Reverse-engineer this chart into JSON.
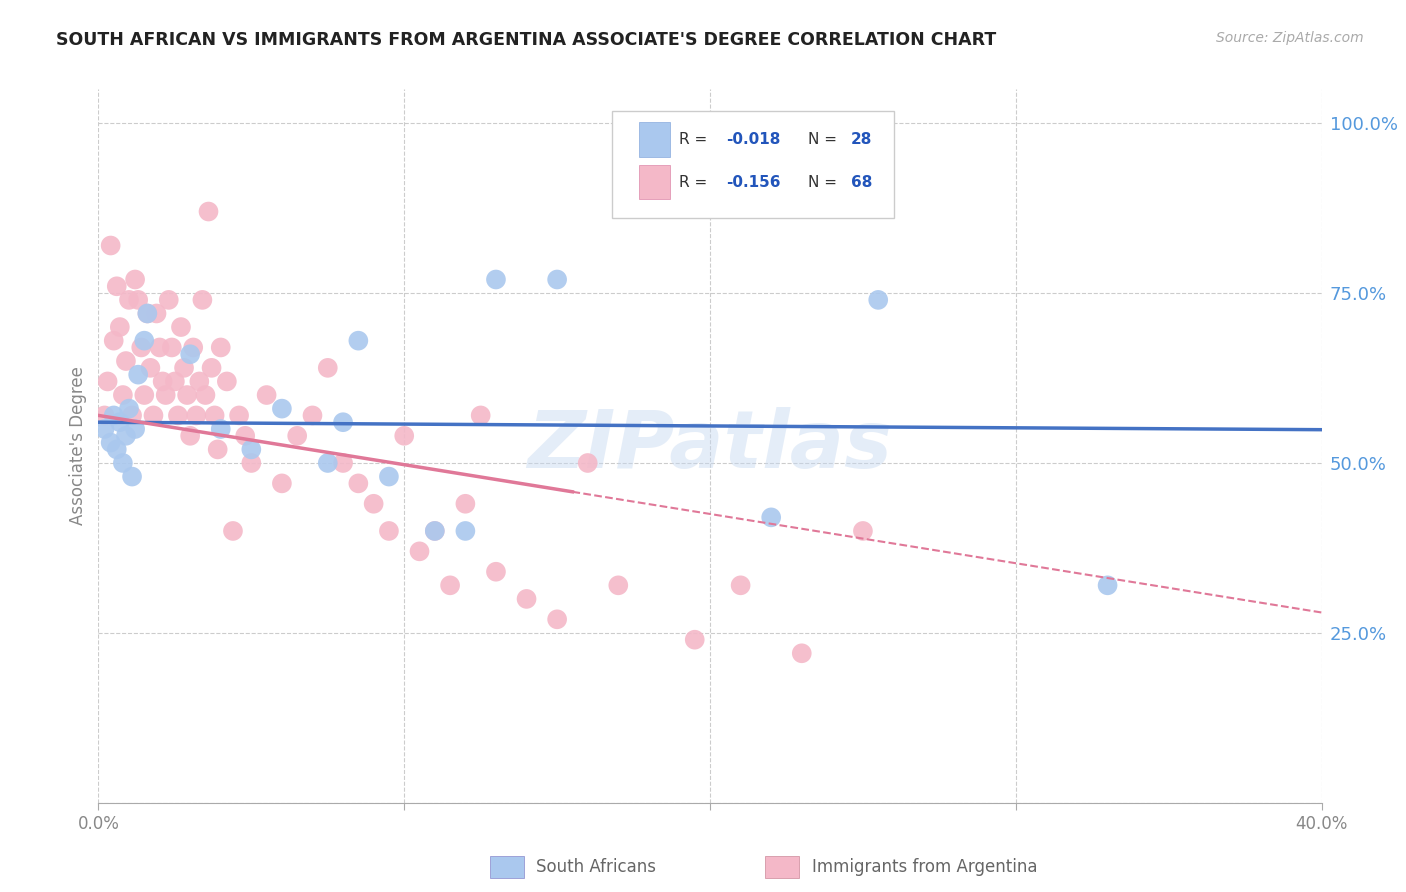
{
  "title": "SOUTH AFRICAN VS IMMIGRANTS FROM ARGENTINA ASSOCIATE'S DEGREE CORRELATION CHART",
  "source": "Source: ZipAtlas.com",
  "ylabel": "Associate's Degree",
  "yticks": [
    0.0,
    0.25,
    0.5,
    0.75,
    1.0
  ],
  "ytick_labels": [
    "",
    "25.0%",
    "50.0%",
    "75.0%",
    "100.0%"
  ],
  "xtick_labels": [
    "0.0%",
    "",
    "",
    "",
    "40.0%"
  ],
  "legend_r1": "R = -0.018",
  "legend_n1": "N = 28",
  "legend_r2": "R = -0.156",
  "legend_n2": "N = 68",
  "color_blue": "#aac8ee",
  "color_pink": "#f4b8c8",
  "color_blue_line": "#4472c4",
  "color_pink_line": "#e07898",
  "color_grid": "#cccccc",
  "color_title": "#222222",
  "color_source": "#aaaaaa",
  "color_rtext": "#2255bb",
  "xlim": [
    0.0,
    0.4
  ],
  "ylim": [
    0.0,
    1.05
  ],
  "sa_x": [
    0.002,
    0.004,
    0.005,
    0.006,
    0.007,
    0.008,
    0.009,
    0.01,
    0.011,
    0.012,
    0.013,
    0.015,
    0.016,
    0.03,
    0.04,
    0.05,
    0.06,
    0.075,
    0.08,
    0.085,
    0.095,
    0.11,
    0.12,
    0.13,
    0.15,
    0.22,
    0.255,
    0.33
  ],
  "sa_y": [
    0.55,
    0.53,
    0.57,
    0.52,
    0.56,
    0.5,
    0.54,
    0.58,
    0.48,
    0.55,
    0.63,
    0.68,
    0.72,
    0.66,
    0.55,
    0.52,
    0.58,
    0.5,
    0.56,
    0.68,
    0.48,
    0.4,
    0.4,
    0.77,
    0.77,
    0.42,
    0.74,
    0.32
  ],
  "arg_x": [
    0.002,
    0.003,
    0.004,
    0.005,
    0.006,
    0.007,
    0.008,
    0.009,
    0.01,
    0.011,
    0.012,
    0.013,
    0.014,
    0.015,
    0.016,
    0.017,
    0.018,
    0.019,
    0.02,
    0.021,
    0.022,
    0.023,
    0.024,
    0.025,
    0.026,
    0.027,
    0.028,
    0.029,
    0.03,
    0.031,
    0.032,
    0.033,
    0.034,
    0.035,
    0.036,
    0.037,
    0.038,
    0.039,
    0.04,
    0.042,
    0.044,
    0.046,
    0.048,
    0.05,
    0.055,
    0.06,
    0.065,
    0.07,
    0.075,
    0.08,
    0.085,
    0.09,
    0.095,
    0.1,
    0.105,
    0.11,
    0.115,
    0.12,
    0.125,
    0.13,
    0.14,
    0.15,
    0.16,
    0.17,
    0.195,
    0.21,
    0.23,
    0.25
  ],
  "arg_y": [
    0.57,
    0.62,
    0.82,
    0.68,
    0.76,
    0.7,
    0.6,
    0.65,
    0.74,
    0.57,
    0.77,
    0.74,
    0.67,
    0.6,
    0.72,
    0.64,
    0.57,
    0.72,
    0.67,
    0.62,
    0.6,
    0.74,
    0.67,
    0.62,
    0.57,
    0.7,
    0.64,
    0.6,
    0.54,
    0.67,
    0.57,
    0.62,
    0.74,
    0.6,
    0.87,
    0.64,
    0.57,
    0.52,
    0.67,
    0.62,
    0.4,
    0.57,
    0.54,
    0.5,
    0.6,
    0.47,
    0.54,
    0.57,
    0.64,
    0.5,
    0.47,
    0.44,
    0.4,
    0.54,
    0.37,
    0.4,
    0.32,
    0.44,
    0.57,
    0.34,
    0.3,
    0.27,
    0.5,
    0.32,
    0.24,
    0.32,
    0.22,
    0.4
  ],
  "sa_trend": [
    0.56,
    0.549
  ],
  "arg_trend_solid_end_x": 0.155,
  "arg_trend": [
    0.57,
    0.28
  ],
  "watermark": "ZIPatlas",
  "figsize": [
    14.06,
    8.92
  ],
  "dpi": 100
}
